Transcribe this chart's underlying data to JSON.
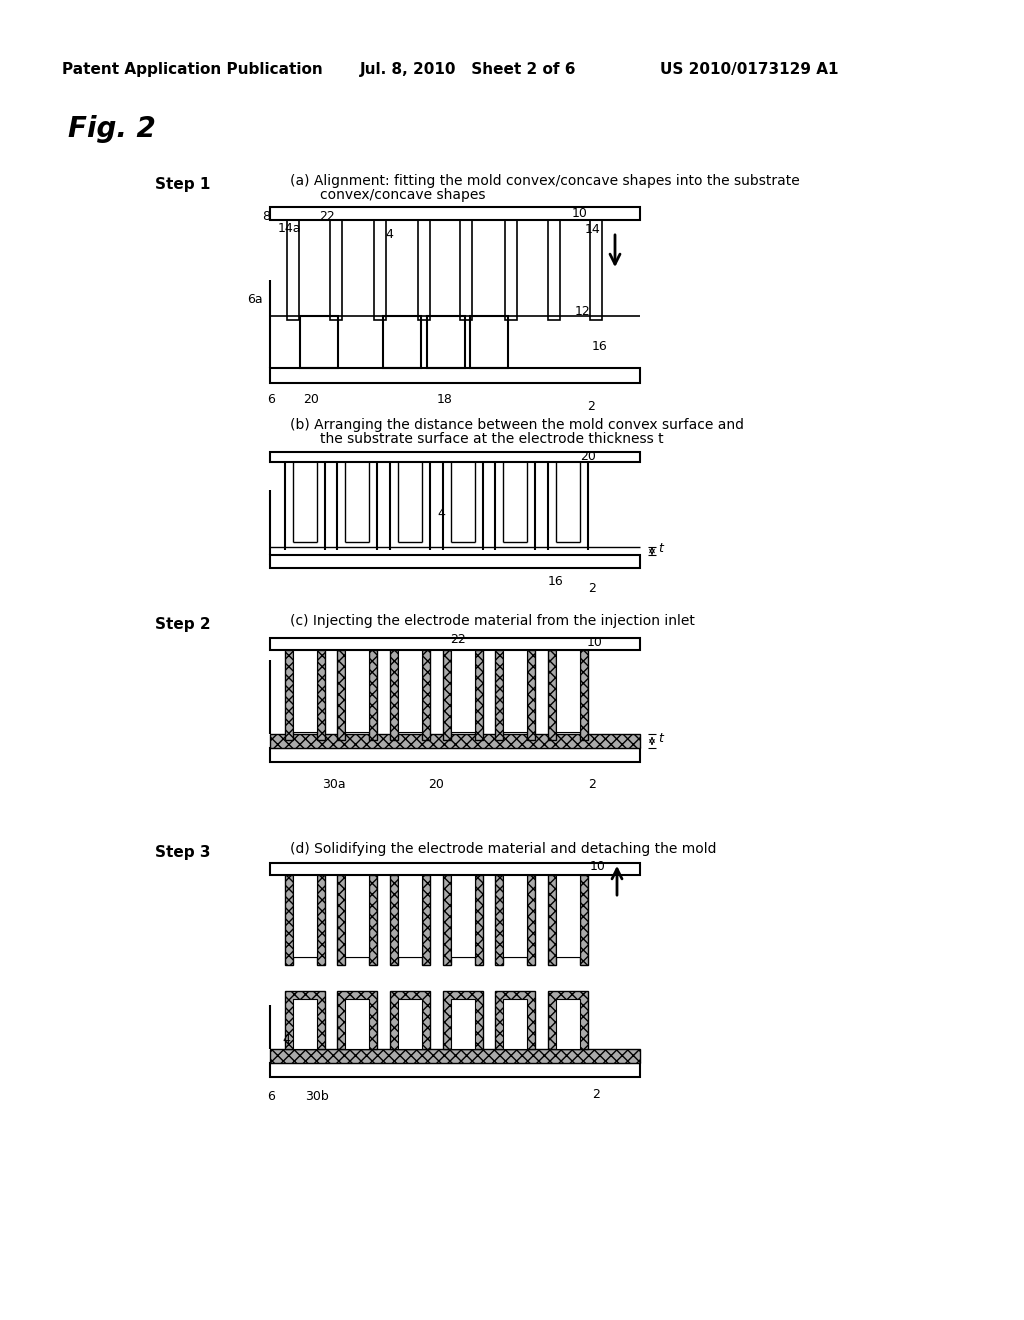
{
  "bg_color": "#ffffff",
  "header_left": "Patent Application Publication",
  "header_mid": "Jul. 8, 2010   Sheet 2 of 6",
  "header_right": "US 2010/0173129 A1",
  "fig_title": "Fig. 2",
  "step1_label": "Step 1",
  "step2_label": "Step 2",
  "step3_label": "Step 3",
  "cap_a": "(a) Alignment: fitting the mold convex/concave shapes into the substrate",
  "cap_a2": "convex/concave shapes",
  "cap_b": "(b) Arranging the distance between the mold convex surface and",
  "cap_b2": "the substrate surface at the electrode thickness t",
  "cap_c": "(c) Injecting the electrode material from the injection inlet",
  "cap_d": "(d) Solidifying the electrode material and detaching the mold"
}
